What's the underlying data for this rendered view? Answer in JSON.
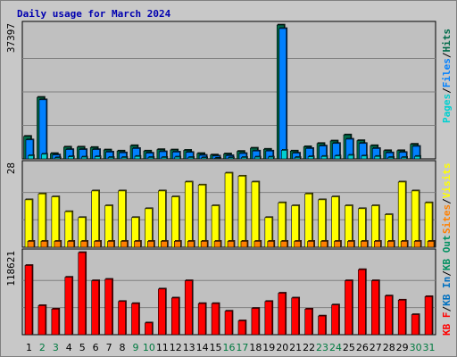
{
  "colors": {
    "pages": "#00d0d0",
    "files": "#0080ff",
    "hits": "#006b4a",
    "visits": "#ffff00",
    "sites": "#ff8000",
    "kb_f": "#ff0000",
    "kb_in": "#0070c0",
    "kb_out": "#009060",
    "weekday": "#000000",
    "weekend": "#007a40"
  },
  "chart_data": {
    "type": "bar",
    "title": "Daily usage for March 2024",
    "categories": [
      "1",
      "2",
      "3",
      "4",
      "5",
      "6",
      "7",
      "8",
      "9",
      "10",
      "11",
      "12",
      "13",
      "14",
      "15",
      "16",
      "17",
      "18",
      "19",
      "20",
      "21",
      "22",
      "23",
      "24",
      "25",
      "26",
      "27",
      "28",
      "29",
      "30",
      "31"
    ],
    "weekend_days": [
      "2",
      "3",
      "9",
      "10",
      "16",
      "17",
      "23",
      "24",
      "30",
      "31"
    ],
    "panels": [
      {
        "name": "hits",
        "max_label": "37397",
        "ymax": 37397,
        "side_labels": [
          "Pages",
          "Files",
          "Hits"
        ],
        "series": [
          {
            "name": "Hits",
            "values": [
              6300,
              17200,
              1500,
              3300,
              3300,
              3200,
              2500,
              2200,
              3700,
              2200,
              2600,
              2500,
              2400,
              1500,
              1100,
              1400,
              2100,
              3000,
              2700,
              37397,
              2200,
              3400,
              4300,
              5000,
              6700,
              5100,
              3700,
              2300,
              2300,
              4100,
              0
            ]
          },
          {
            "name": "Files",
            "values": [
              5300,
              16500,
              1100,
              2600,
              2600,
              2600,
              1900,
              1700,
              2900,
              1600,
              2000,
              1900,
              1800,
              1000,
              800,
              900,
              1500,
              2200,
              2200,
              36400,
              1600,
              2900,
              3600,
              4300,
              5500,
              4300,
              2900,
              1700,
              1800,
              3500,
              0
            ]
          },
          {
            "name": "Pages",
            "values": [
              900,
              1300,
              300,
              600,
              500,
              600,
              400,
              400,
              700,
              400,
              400,
              500,
              400,
              300,
              200,
              300,
              400,
              500,
              500,
              2400,
              400,
              600,
              700,
              800,
              1000,
              800,
              700,
              400,
              400,
              700,
              0
            ]
          }
        ]
      },
      {
        "name": "visits",
        "max_label": "28",
        "ymax": 28,
        "side_labels": [
          "Sites",
          "Visits"
        ],
        "series": [
          {
            "name": "Visits",
            "values": [
              16,
              18,
              17,
              12,
              10,
              19,
              14,
              19,
              10,
              13,
              19,
              17,
              22,
              21,
              14,
              25,
              24,
              22,
              10,
              15,
              14,
              18,
              16,
              17,
              14,
              13,
              14,
              11,
              22,
              19,
              15
            ]
          },
          {
            "name": "Sites",
            "values": [
              2,
              2,
              2,
              2,
              2,
              2,
              2,
              2,
              2,
              2,
              2,
              2,
              2,
              2,
              2,
              2,
              2,
              2,
              2,
              2,
              2,
              2,
              2,
              2,
              2,
              2,
              2,
              2,
              2,
              2,
              2
            ]
          }
        ]
      },
      {
        "name": "kbytes",
        "max_label": "118621",
        "ymax": 118621,
        "side_labels": [
          "KB F",
          "KB In",
          "KB Out"
        ],
        "series": [
          {
            "name": "KB F",
            "values": [
              100000,
              42000,
              37000,
              83000,
              118621,
              78000,
              80000,
              48000,
              45000,
              17000,
              66000,
              53000,
              78000,
              45000,
              45000,
              34000,
              20000,
              38000,
              48000,
              60000,
              53000,
              37000,
              27000,
              43000,
              78000,
              94000,
              78000,
              56000,
              50000,
              29000,
              55000
            ]
          }
        ]
      }
    ]
  }
}
